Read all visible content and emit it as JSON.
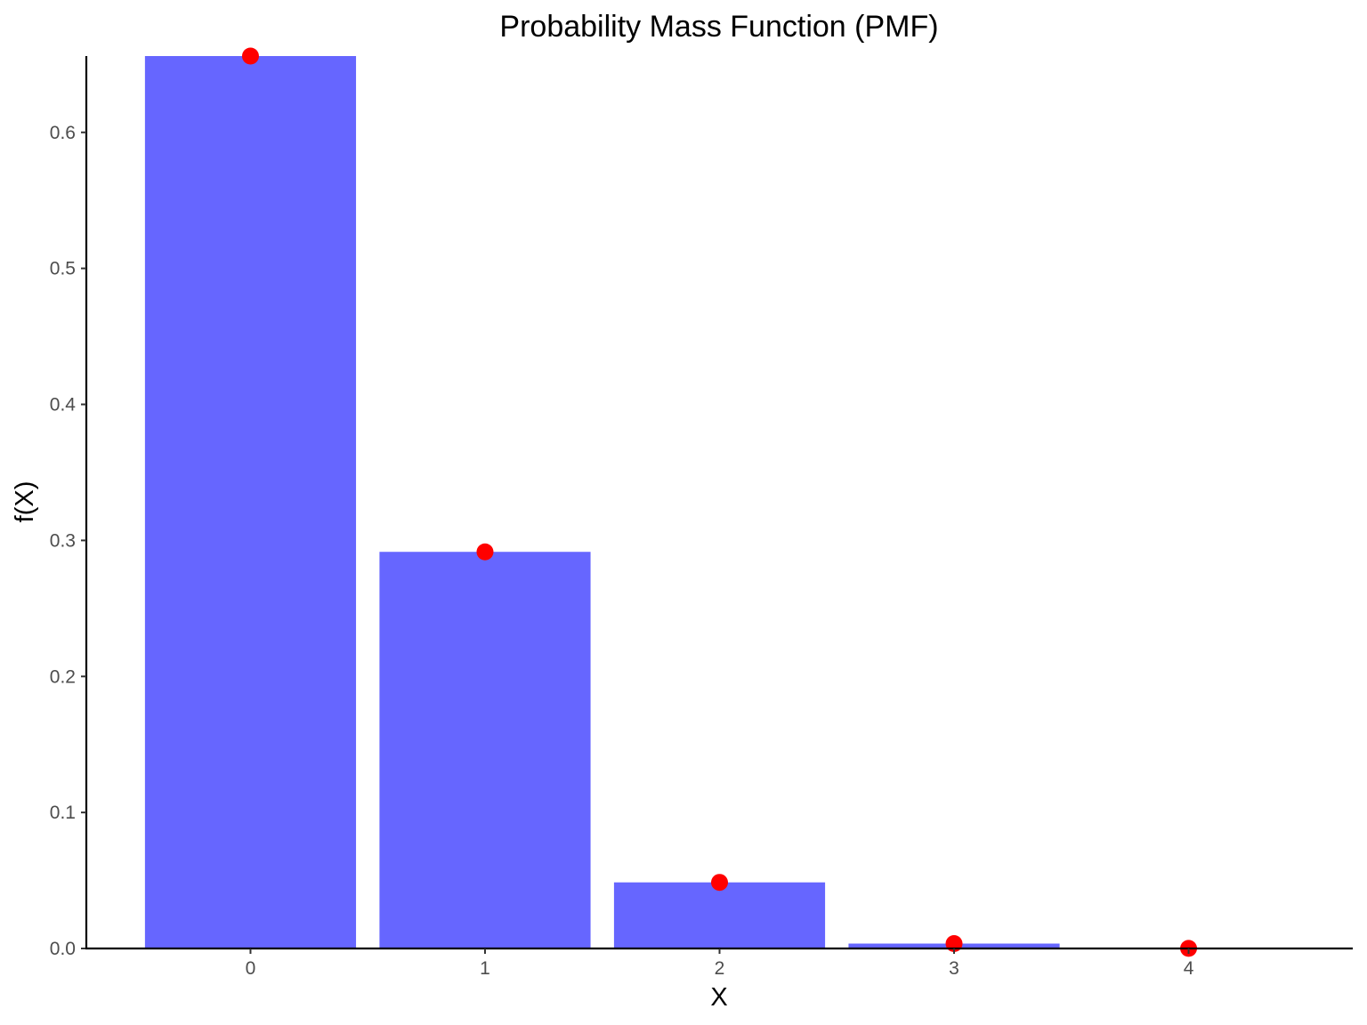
{
  "chart_data": {
    "type": "bar",
    "title": "Probability Mass Function (PMF)",
    "xlabel": "X",
    "ylabel": "f(X)",
    "categories": [
      "0",
      "1",
      "2",
      "3",
      "4"
    ],
    "x": [
      0,
      1,
      2,
      3,
      4
    ],
    "values": [
      0.6561,
      0.2916,
      0.0486,
      0.0036,
      0.0001
    ],
    "points": [
      0.6561,
      0.2916,
      0.0486,
      0.0036,
      0.0001
    ],
    "xlim": [
      -0.7,
      4.7
    ],
    "ylim": [
      0,
      0.6561
    ],
    "yticks": [
      0.0,
      0.1,
      0.2,
      0.3,
      0.4,
      0.5,
      0.6
    ],
    "ytick_labels": [
      "0.0",
      "0.1",
      "0.2",
      "0.3",
      "0.4",
      "0.5",
      "0.6"
    ],
    "xtick_labels": [
      "0",
      "1",
      "2",
      "3",
      "4"
    ],
    "grid": false,
    "legend": "none",
    "colors": {
      "bar": "#6666ff",
      "point": "#ff0000",
      "axis": "#000000",
      "tick_label": "#4d4d4d"
    }
  }
}
